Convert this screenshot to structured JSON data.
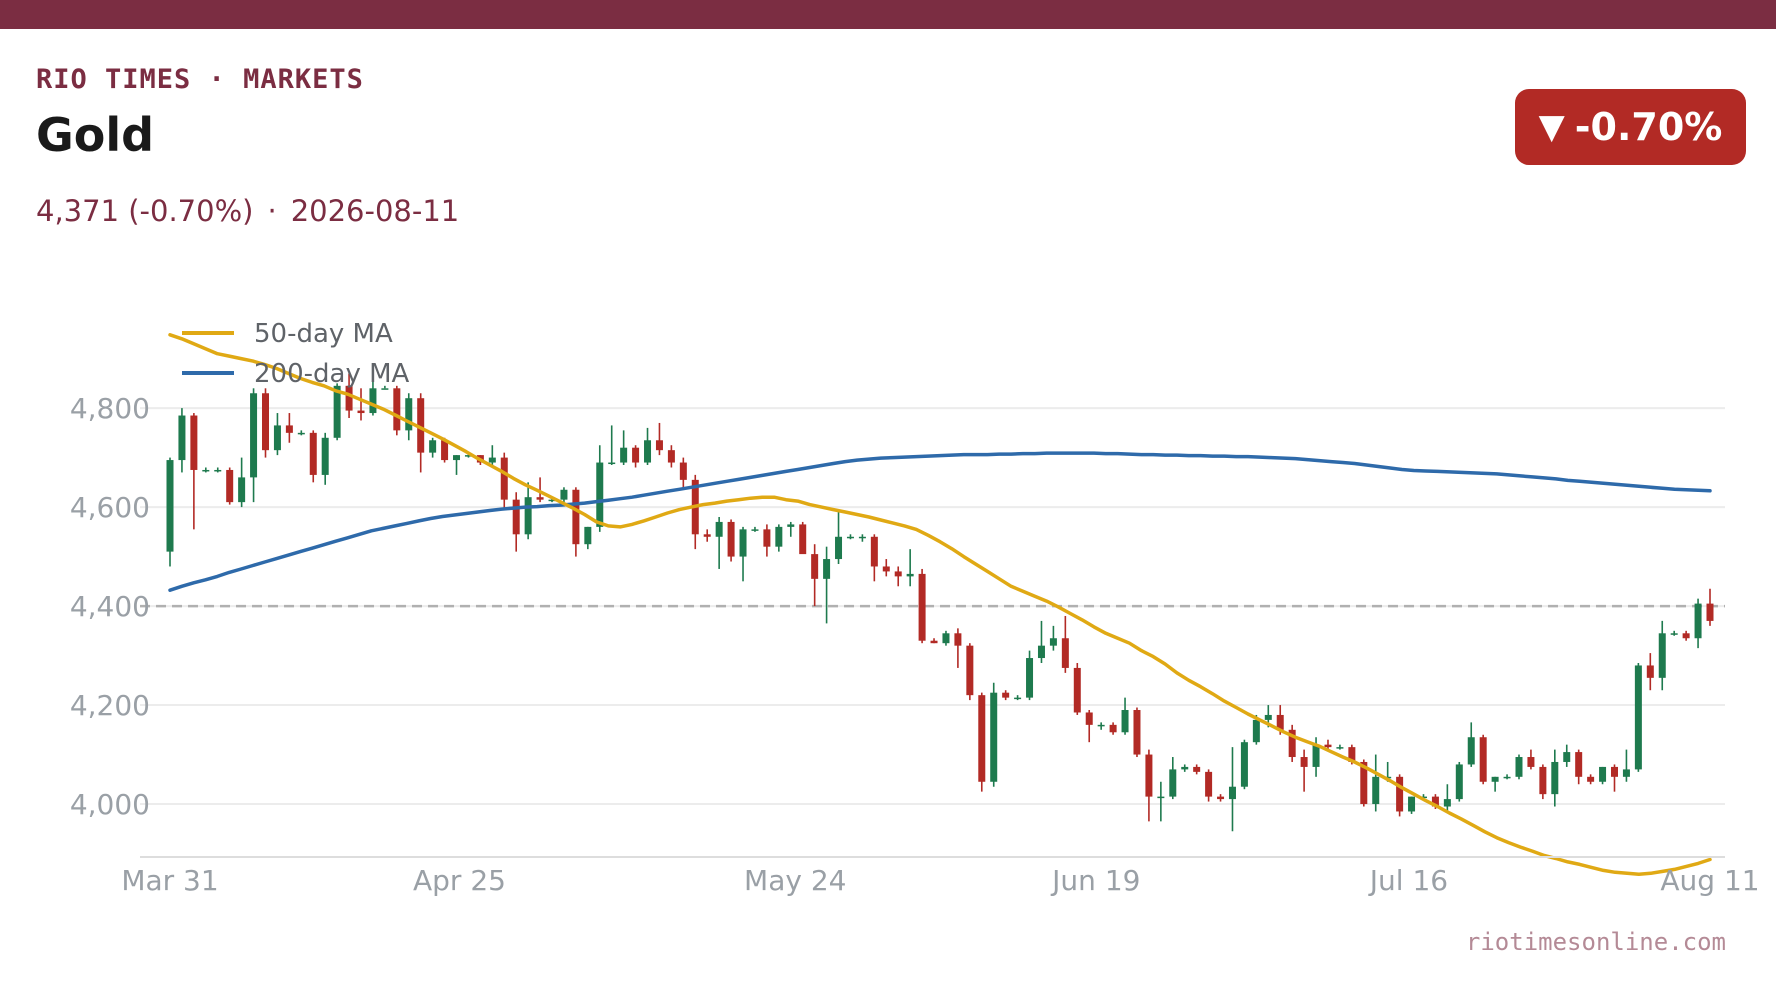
{
  "header": {
    "brand": "RIO TIMES · MARKETS",
    "title": "Gold",
    "price_text": "4,371 (-0.70%)",
    "separator": "·",
    "date": "2026-08-11",
    "badge_arrow": "▼",
    "badge_text": "-0.70%",
    "source": "riotimesonline.com"
  },
  "colors": {
    "brand": "#7b2d42",
    "up": "#1e7a4e",
    "down": "#b22a25",
    "ma50": "#e0a914",
    "ma200": "#2e6aaa",
    "reference": "#b0b0b0",
    "grid": "#ececec"
  },
  "chart_data": {
    "type": "candlestick",
    "x_start": "2026-03-31",
    "x_end": "2026-08-11",
    "x_ticks": [
      {
        "label": "Mar 31",
        "date": "2026-03-31"
      },
      {
        "label": "Apr 25",
        "date": "2026-04-25"
      },
      {
        "label": "May 24",
        "date": "2026-05-24"
      },
      {
        "label": "Jun 19",
        "date": "2026-06-19"
      },
      {
        "label": "Jul 16",
        "date": "2026-07-16"
      },
      {
        "label": "Aug 11",
        "date": "2026-08-11"
      }
    ],
    "y_ticks": [
      {
        "value": 4000,
        "label": "4,000"
      },
      {
        "value": 4200,
        "label": "4,200"
      },
      {
        "value": 4400,
        "label": "4,400"
      },
      {
        "value": 4600,
        "label": "4,600"
      },
      {
        "value": 4800,
        "label": "4,800"
      }
    ],
    "ylim": [
      3893,
      4978
    ],
    "reference_line": 4400,
    "legend": [
      {
        "key": "ma50",
        "label": "50-day MA"
      },
      {
        "key": "ma200",
        "label": "200-day MA"
      }
    ],
    "candles": [
      [
        4510,
        4700,
        4480,
        4695
      ],
      [
        4695,
        4800,
        4670,
        4785
      ],
      [
        4785,
        4790,
        4555,
        4675
      ],
      [
        4675,
        4680,
        4670,
        4675
      ],
      [
        4675,
        4680,
        4670,
        4675
      ],
      [
        4675,
        4680,
        4605,
        4610
      ],
      [
        4610,
        4700,
        4600,
        4660
      ],
      [
        4660,
        4840,
        4610,
        4830
      ],
      [
        4830,
        4840,
        4700,
        4715
      ],
      [
        4715,
        4790,
        4705,
        4765
      ],
      [
        4765,
        4790,
        4730,
        4750
      ],
      [
        4750,
        4755,
        4745,
        4750
      ],
      [
        4750,
        4755,
        4650,
        4665
      ],
      [
        4665,
        4750,
        4645,
        4740
      ],
      [
        4740,
        4850,
        4735,
        4845
      ],
      [
        4845,
        4870,
        4780,
        4795
      ],
      [
        4795,
        4840,
        4775,
        4790
      ],
      [
        4790,
        4890,
        4785,
        4840
      ],
      [
        4840,
        4845,
        4840,
        4840
      ],
      [
        4840,
        4845,
        4745,
        4755
      ],
      [
        4755,
        4830,
        4735,
        4820
      ],
      [
        4820,
        4830,
        4670,
        4710
      ],
      [
        4710,
        4740,
        4700,
        4735
      ],
      [
        4735,
        4740,
        4690,
        4695
      ],
      [
        4695,
        4705,
        4665,
        4705
      ],
      [
        4705,
        4710,
        4700,
        4705
      ],
      [
        4705,
        4705,
        4685,
        4690
      ],
      [
        4690,
        4725,
        4685,
        4700
      ],
      [
        4700,
        4710,
        4595,
        4615
      ],
      [
        4615,
        4630,
        4510,
        4545
      ],
      [
        4545,
        4650,
        4535,
        4620
      ],
      [
        4620,
        4660,
        4610,
        4615
      ],
      [
        4615,
        4620,
        4610,
        4615
      ],
      [
        4615,
        4640,
        4610,
        4635
      ],
      [
        4635,
        4640,
        4500,
        4525
      ],
      [
        4525,
        4560,
        4515,
        4560
      ],
      [
        4560,
        4725,
        4550,
        4690
      ],
      [
        4690,
        4765,
        4685,
        4690
      ],
      [
        4690,
        4755,
        4685,
        4720
      ],
      [
        4720,
        4725,
        4680,
        4690
      ],
      [
        4690,
        4760,
        4685,
        4735
      ],
      [
        4735,
        4770,
        4705,
        4715
      ],
      [
        4715,
        4725,
        4680,
        4690
      ],
      [
        4690,
        4700,
        4640,
        4655
      ],
      [
        4655,
        4665,
        4515,
        4545
      ],
      [
        4545,
        4555,
        4530,
        4540
      ],
      [
        4540,
        4580,
        4475,
        4570
      ],
      [
        4570,
        4575,
        4490,
        4500
      ],
      [
        4500,
        4560,
        4450,
        4555
      ],
      [
        4555,
        4560,
        4550,
        4555
      ],
      [
        4555,
        4565,
        4500,
        4520
      ],
      [
        4520,
        4565,
        4510,
        4560
      ],
      [
        4560,
        4570,
        4540,
        4565
      ],
      [
        4565,
        4570,
        4515,
        4505
      ],
      [
        4505,
        4525,
        4400,
        4455
      ],
      [
        4455,
        4520,
        4365,
        4495
      ],
      [
        4495,
        4590,
        4485,
        4540
      ],
      [
        4540,
        4545,
        4535,
        4540
      ],
      [
        4540,
        4545,
        4530,
        4540
      ],
      [
        4540,
        4545,
        4450,
        4480
      ],
      [
        4480,
        4495,
        4460,
        4470
      ],
      [
        4470,
        4480,
        4440,
        4460
      ],
      [
        4460,
        4515,
        4440,
        4465
      ],
      [
        4465,
        4475,
        4325,
        4330
      ],
      [
        4330,
        4335,
        4325,
        4325
      ],
      [
        4325,
        4350,
        4320,
        4345
      ],
      [
        4345,
        4355,
        4275,
        4320
      ],
      [
        4320,
        4325,
        4210,
        4220
      ],
      [
        4220,
        4225,
        4025,
        4045
      ],
      [
        4045,
        4245,
        4035,
        4225
      ],
      [
        4225,
        4230,
        4210,
        4215
      ],
      [
        4215,
        4220,
        4210,
        4215
      ],
      [
        4215,
        4310,
        4210,
        4295
      ],
      [
        4295,
        4370,
        4285,
        4320
      ],
      [
        4320,
        4360,
        4310,
        4335
      ],
      [
        4335,
        4380,
        4265,
        4275
      ],
      [
        4275,
        4285,
        4180,
        4185
      ],
      [
        4185,
        4190,
        4125,
        4160
      ],
      [
        4160,
        4165,
        4150,
        4160
      ],
      [
        4160,
        4165,
        4140,
        4145
      ],
      [
        4145,
        4215,
        4140,
        4190
      ],
      [
        4190,
        4195,
        4095,
        4100
      ],
      [
        4100,
        4110,
        3965,
        4015
      ],
      [
        4015,
        4045,
        3965,
        4015
      ],
      [
        4015,
        4095,
        4010,
        4070
      ],
      [
        4070,
        4080,
        4065,
        4075
      ],
      [
        4075,
        4080,
        4060,
        4065
      ],
      [
        4065,
        4070,
        4005,
        4015
      ],
      [
        4015,
        4020,
        4005,
        4010
      ],
      [
        4010,
        4115,
        3945,
        4035
      ],
      [
        4035,
        4130,
        4030,
        4125
      ],
      [
        4125,
        4180,
        4120,
        4170
      ],
      [
        4170,
        4200,
        4155,
        4180
      ],
      [
        4180,
        4200,
        4140,
        4150
      ],
      [
        4150,
        4160,
        4085,
        4095
      ],
      [
        4095,
        4110,
        4025,
        4075
      ],
      [
        4075,
        4135,
        4055,
        4120
      ],
      [
        4120,
        4130,
        4110,
        4115
      ],
      [
        4115,
        4120,
        4110,
        4115
      ],
      [
        4115,
        4120,
        4080,
        4085
      ],
      [
        4085,
        4090,
        3995,
        4000
      ],
      [
        4000,
        4100,
        3985,
        4055
      ],
      [
        4055,
        4085,
        4045,
        4055
      ],
      [
        4055,
        4060,
        3975,
        3985
      ],
      [
        3985,
        4015,
        3980,
        4015
      ],
      [
        4015,
        4020,
        4010,
        4015
      ],
      [
        4015,
        4020,
        3990,
        3995
      ],
      [
        3995,
        4040,
        3985,
        4010
      ],
      [
        4010,
        4085,
        4005,
        4080
      ],
      [
        4080,
        4165,
        4075,
        4135
      ],
      [
        4135,
        4140,
        4040,
        4045
      ],
      [
        4045,
        4055,
        4025,
        4055
      ],
      [
        4055,
        4060,
        4050,
        4055
      ],
      [
        4055,
        4100,
        4050,
        4095
      ],
      [
        4095,
        4110,
        4070,
        4075
      ],
      [
        4075,
        4080,
        4010,
        4020
      ],
      [
        4020,
        4110,
        3995,
        4085
      ],
      [
        4085,
        4120,
        4075,
        4105
      ],
      [
        4105,
        4110,
        4040,
        4055
      ],
      [
        4055,
        4060,
        4040,
        4045
      ],
      [
        4045,
        4075,
        4040,
        4075
      ],
      [
        4075,
        4080,
        4025,
        4055
      ],
      [
        4055,
        4110,
        4045,
        4070
      ],
      [
        4070,
        4285,
        4065,
        4280
      ],
      [
        4280,
        4305,
        4230,
        4255
      ],
      [
        4255,
        4370,
        4230,
        4345
      ],
      [
        4345,
        4350,
        4340,
        4345
      ],
      [
        4345,
        4350,
        4330,
        4335
      ],
      [
        4335,
        4415,
        4315,
        4405
      ],
      [
        4405,
        4435,
        4360,
        4370
      ]
    ],
    "ma50": [
      4948,
      4940,
      4930,
      4920,
      4910,
      4905,
      4900,
      4895,
      4888,
      4880,
      4870,
      4860,
      4852,
      4845,
      4835,
      4828,
      4818,
      4808,
      4798,
      4786,
      4774,
      4762,
      4750,
      4738,
      4725,
      4712,
      4698,
      4685,
      4672,
      4658,
      4645,
      4634,
      4622,
      4610,
      4598,
      4585,
      4570,
      4562,
      4560,
      4565,
      4572,
      4580,
      4588,
      4595,
      4600,
      4605,
      4608,
      4612,
      4615,
      4618,
      4620,
      4620,
      4615,
      4612,
      4605,
      4600,
      4595,
      4590,
      4585,
      4580,
      4574,
      4568,
      4562,
      4555,
      4543,
      4530,
      4516,
      4500,
      4485,
      4470,
      4455,
      4440,
      4430,
      4420,
      4410,
      4398,
      4385,
      4372,
      4358,
      4345,
      4335,
      4325,
      4310,
      4298,
      4283,
      4265,
      4250,
      4237,
      4223,
      4208,
      4195,
      4182,
      4170,
      4158,
      4146,
      4135,
      4126,
      4117,
      4106,
      4095,
      4085,
      4073,
      4060,
      4047,
      4033,
      4020,
      4007,
      3995,
      3982,
      3970,
      3957,
      3944,
      3932,
      3922,
      3913,
      3905,
      3896,
      3890,
      3883,
      3878,
      3872,
      3866,
      3862,
      3860,
      3858,
      3860,
      3864,
      3868,
      3874,
      3880,
      3888
    ],
    "ma200": [
      4432,
      4440,
      4447,
      4453,
      4460,
      4468,
      4475,
      4482,
      4489,
      4496,
      4503,
      4510,
      4517,
      4524,
      4531,
      4538,
      4545,
      4552,
      4557,
      4562,
      4567,
      4572,
      4577,
      4581,
      4584,
      4587,
      4590,
      4593,
      4596,
      4598,
      4600,
      4601,
      4603,
      4604,
      4606,
      4608,
      4611,
      4614,
      4617,
      4620,
      4624,
      4628,
      4632,
      4636,
      4640,
      4644,
      4648,
      4652,
      4656,
      4660,
      4664,
      4668,
      4672,
      4676,
      4680,
      4684,
      4688,
      4692,
      4695,
      4697,
      4699,
      4700,
      4701,
      4702,
      4703,
      4704,
      4705,
      4706,
      4706,
      4706,
      4707,
      4707,
      4708,
      4708,
      4709,
      4709,
      4709,
      4709,
      4709,
      4708,
      4708,
      4707,
      4706,
      4706,
      4705,
      4705,
      4704,
      4704,
      4703,
      4703,
      4702,
      4702,
      4701,
      4700,
      4699,
      4698,
      4696,
      4694,
      4692,
      4690,
      4688,
      4685,
      4682,
      4679,
      4676,
      4674,
      4673,
      4672,
      4671,
      4670,
      4669,
      4668,
      4667,
      4665,
      4663,
      4661,
      4659,
      4657,
      4654,
      4652,
      4650,
      4648,
      4646,
      4644,
      4642,
      4640,
      4638,
      4636,
      4635,
      4634,
      4633
    ]
  }
}
